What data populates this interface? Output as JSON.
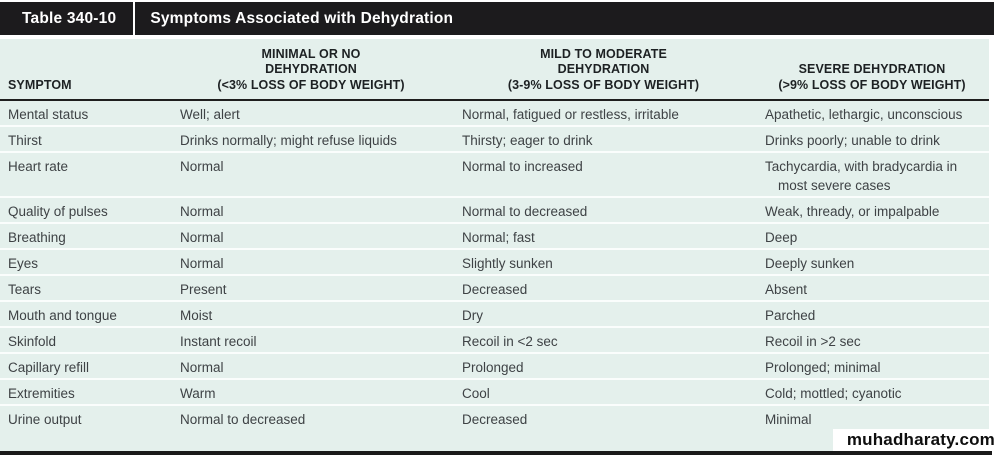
{
  "title_bar": {
    "table_number": "Table 340-10",
    "table_title": "Symptoms Associated with Dehydration"
  },
  "table": {
    "columns": [
      {
        "label": "SYMPTOM"
      },
      {
        "label": "MINIMAL OR NO\nDEHYDRATION\n(<3% LOSS OF BODY WEIGHT)"
      },
      {
        "label": "MILD TO MODERATE\nDEHYDRATION\n(3-9% LOSS OF BODY WEIGHT)"
      },
      {
        "label": "SEVERE DEHYDRATION\n(>9% LOSS OF BODY WEIGHT)"
      }
    ],
    "rows": [
      {
        "symptom": "Mental status",
        "minimal": "Well; alert",
        "mild": "Normal, fatigued or restless, irritable",
        "severe": "Apathetic, lethargic, unconscious"
      },
      {
        "symptom": "Thirst",
        "minimal": "Drinks normally; might refuse liquids",
        "mild": "Thirsty; eager to drink",
        "severe": "Drinks poorly; unable to drink"
      },
      {
        "symptom": "Heart rate",
        "minimal": "Normal",
        "mild": "Normal to increased",
        "severe": "Tachycardia, with bradycardia in most severe cases"
      },
      {
        "symptom": "Quality of pulses",
        "minimal": "Normal",
        "mild": "Normal to decreased",
        "severe": "Weak, thready, or impalpable"
      },
      {
        "symptom": "Breathing",
        "minimal": "Normal",
        "mild": "Normal; fast",
        "severe": "Deep"
      },
      {
        "symptom": "Eyes",
        "minimal": "Normal",
        "mild": "Slightly sunken",
        "severe": "Deeply sunken"
      },
      {
        "symptom": "Tears",
        "minimal": "Present",
        "mild": "Decreased",
        "severe": "Absent"
      },
      {
        "symptom": "Mouth and tongue",
        "minimal": "Moist",
        "mild": "Dry",
        "severe": "Parched"
      },
      {
        "symptom": "Skinfold",
        "minimal": "Instant recoil",
        "mild": "Recoil in <2 sec",
        "severe": "Recoil in >2 sec"
      },
      {
        "symptom": "Capillary refill",
        "minimal": "Normal",
        "mild": "Prolonged",
        "severe": "Prolonged; minimal"
      },
      {
        "symptom": "Extremities",
        "minimal": "Warm",
        "mild": "Cool",
        "severe": "Cold; mottled; cyanotic"
      },
      {
        "symptom": "Urine output",
        "minimal": "Normal to decreased",
        "mild": "Decreased",
        "severe": "Minimal"
      }
    ]
  },
  "watermark": "muhadharaty.com",
  "colors": {
    "caption_bar": "#1c1b1d",
    "table_background": "#e4f0ec",
    "row_separator": "#fafdfc",
    "header_rule": "#1e1e1e",
    "body_text": "#3e4245",
    "header_text": "#1d2123"
  }
}
